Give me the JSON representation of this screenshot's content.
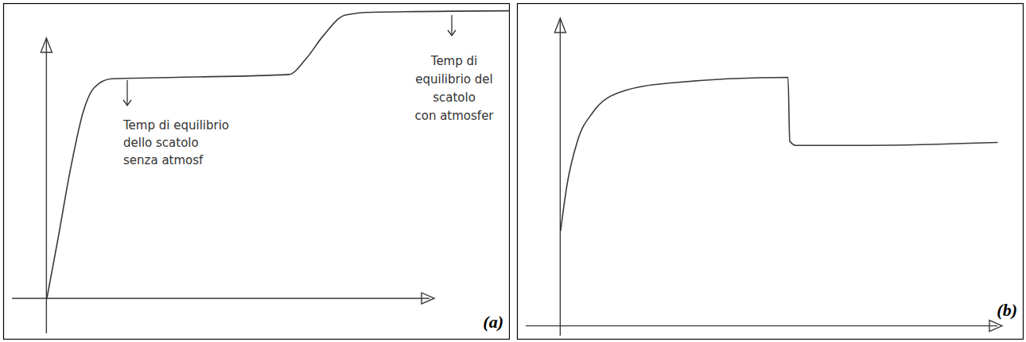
{
  "chart_data": [
    {
      "type": "line",
      "panel": "(a)",
      "color": "#3a3a3a",
      "tick_labels": false,
      "x": [
        0,
        0.25,
        0.55,
        0.85,
        1.1,
        1.5,
        3,
        5.6,
        6.0,
        6.4,
        6.9,
        7.5,
        10.7
      ],
      "values": [
        0,
        2,
        4.5,
        6.5,
        7.3,
        7.6,
        7.65,
        7.75,
        8.3,
        9.1,
        9.8,
        9.9,
        9.95
      ],
      "xlim": [
        -1,
        10.7
      ],
      "ylim": [
        -1.4,
        10.2
      ],
      "xticks": [],
      "yticks": [],
      "annotations": [
        {
          "lines": [
            "Temp di equilibrio",
            "dello scatolo",
            "senza atmosf"
          ]
        },
        {
          "lines": [
            "Temp di",
            "equilibrio del",
            "scatolo",
            "con atmosfer"
          ]
        }
      ]
    },
    {
      "type": "line",
      "panel": "(b)",
      "color": "#3a3a3a",
      "tick_labels": false,
      "x": [
        0,
        0.15,
        0.39,
        0.75,
        1.4,
        2.5,
        5.26,
        5.3,
        5.44,
        7.1,
        10.1
      ],
      "values": [
        3.3,
        4.9,
        6.4,
        7.4,
        8.1,
        8.4,
        8.6,
        6.4,
        6.25,
        6.25,
        6.35
      ],
      "xlim": [
        -1,
        10.7
      ],
      "ylim": [
        -0.45,
        11.15
      ],
      "xticks": [],
      "yticks": []
    }
  ]
}
